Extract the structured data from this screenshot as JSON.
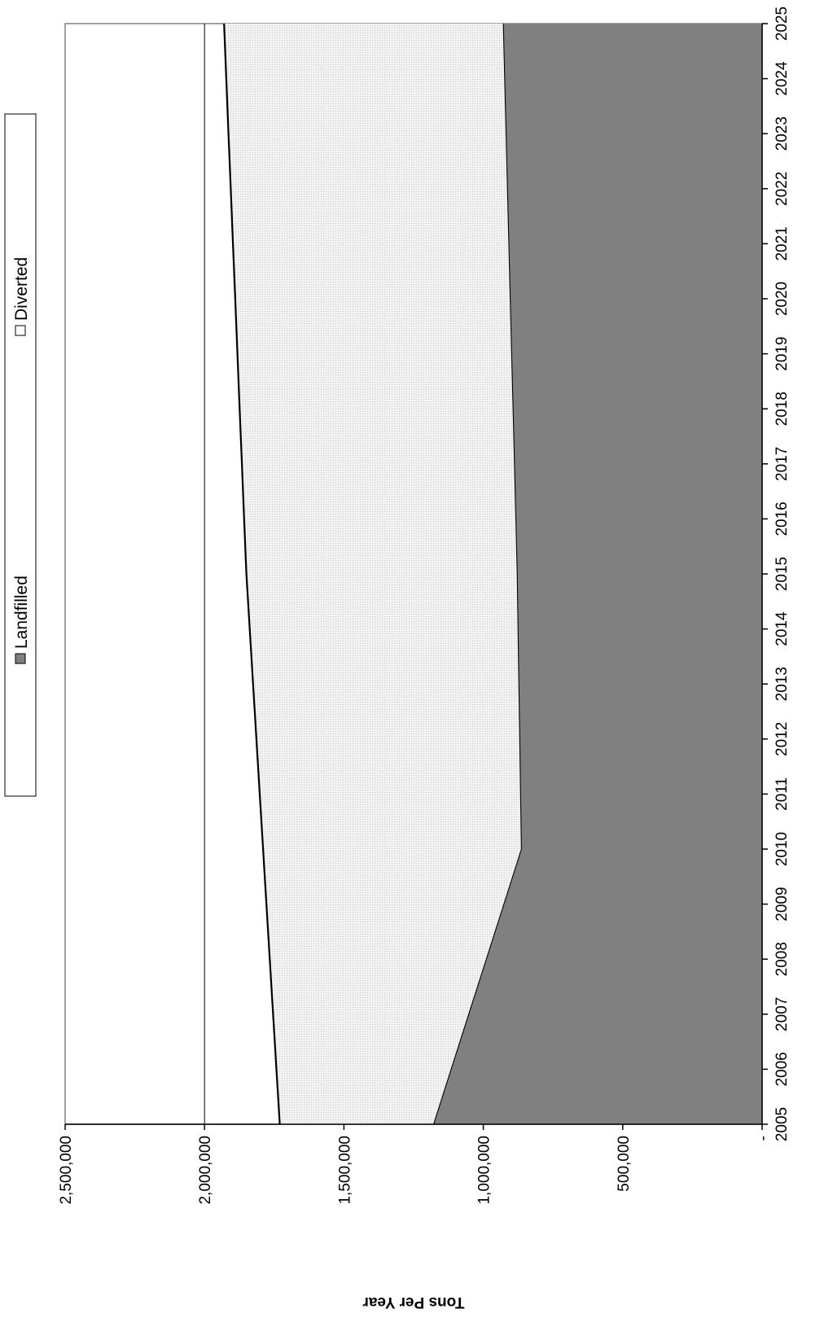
{
  "chart_data": {
    "type": "area",
    "stacked": true,
    "orientation": "rotated-90-clockwise",
    "title": "",
    "xlabel": "",
    "ylabel": "Tons Per Year",
    "x": [
      "2005",
      "2006",
      "2007",
      "2008",
      "2009",
      "2010",
      "2011",
      "2012",
      "2013",
      "2014",
      "2015",
      "2016",
      "2017",
      "2018",
      "2019",
      "2020",
      "2021",
      "2022",
      "2023",
      "2024",
      "2025"
    ],
    "ylim": [
      0,
      2500000
    ],
    "y_ticks": [
      0,
      500000,
      1000000,
      1500000,
      2000000,
      2500000
    ],
    "y_tick_labels": [
      "-",
      "500,000",
      "1,000,000",
      "1,500,000",
      "2,000,000",
      "2,500,000"
    ],
    "series": [
      {
        "name": "Landfilled",
        "color": "#808080",
        "values": [
          1180000,
          1117000,
          1054000,
          991000,
          928000,
          865000,
          868000,
          871000,
          874000,
          877000,
          880000,
          885000,
          890000,
          895000,
          900000,
          905000,
          910000,
          915000,
          920000,
          925000,
          930000
        ]
      },
      {
        "name": "Diverted",
        "color": "#ededed",
        "values": [
          550000,
          625000,
          700000,
          775000,
          850000,
          925000,
          934000,
          943000,
          952000,
          961000,
          970000,
          973000,
          976000,
          979000,
          982000,
          985000,
          988000,
          991000,
          994000,
          997000,
          1000000
        ]
      }
    ],
    "grid": {
      "major_y": [
        2000000
      ]
    },
    "legend": {
      "position": "top",
      "items": [
        "Landfilled",
        "Diverted"
      ]
    }
  }
}
